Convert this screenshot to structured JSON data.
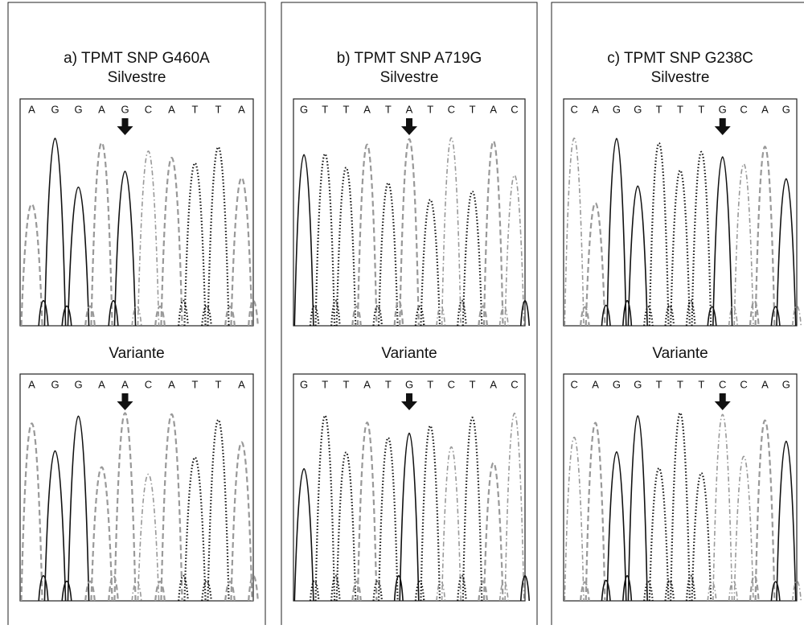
{
  "panels": [
    {
      "title": "a) TPMT SNP G460A",
      "top": {
        "label": "Silvestre",
        "bases": [
          "A",
          "G",
          "G",
          "A",
          "G",
          "C",
          "A",
          "T",
          "T",
          "A"
        ]
      },
      "bottom": {
        "label": "Variante",
        "bases": [
          "A",
          "G",
          "G",
          "A",
          "A",
          "C",
          "A",
          "T",
          "T",
          "A"
        ]
      }
    },
    {
      "title": "b) TPMT SNP A719G",
      "top": {
        "label": "Silvestre",
        "bases": [
          "G",
          "T",
          "T",
          "A",
          "T",
          "A",
          "T",
          "C",
          "T",
          "A",
          "C"
        ]
      },
      "bottom": {
        "label": "Variante",
        "bases": [
          "G",
          "T",
          "T",
          "A",
          "T",
          "G",
          "T",
          "C",
          "T",
          "A",
          "C"
        ]
      }
    },
    {
      "title": "c) TPMT SNP G238C",
      "top": {
        "label": "Silvestre",
        "bases": [
          "C",
          "A",
          "G",
          "G",
          "T",
          "T",
          "T",
          "G",
          "C",
          "A",
          "G"
        ]
      },
      "bottom": {
        "label": "Variante",
        "bases": [
          "C",
          "A",
          "G",
          "G",
          "T",
          "T",
          "T",
          "C",
          "C",
          "A",
          "G"
        ]
      }
    }
  ]
}
